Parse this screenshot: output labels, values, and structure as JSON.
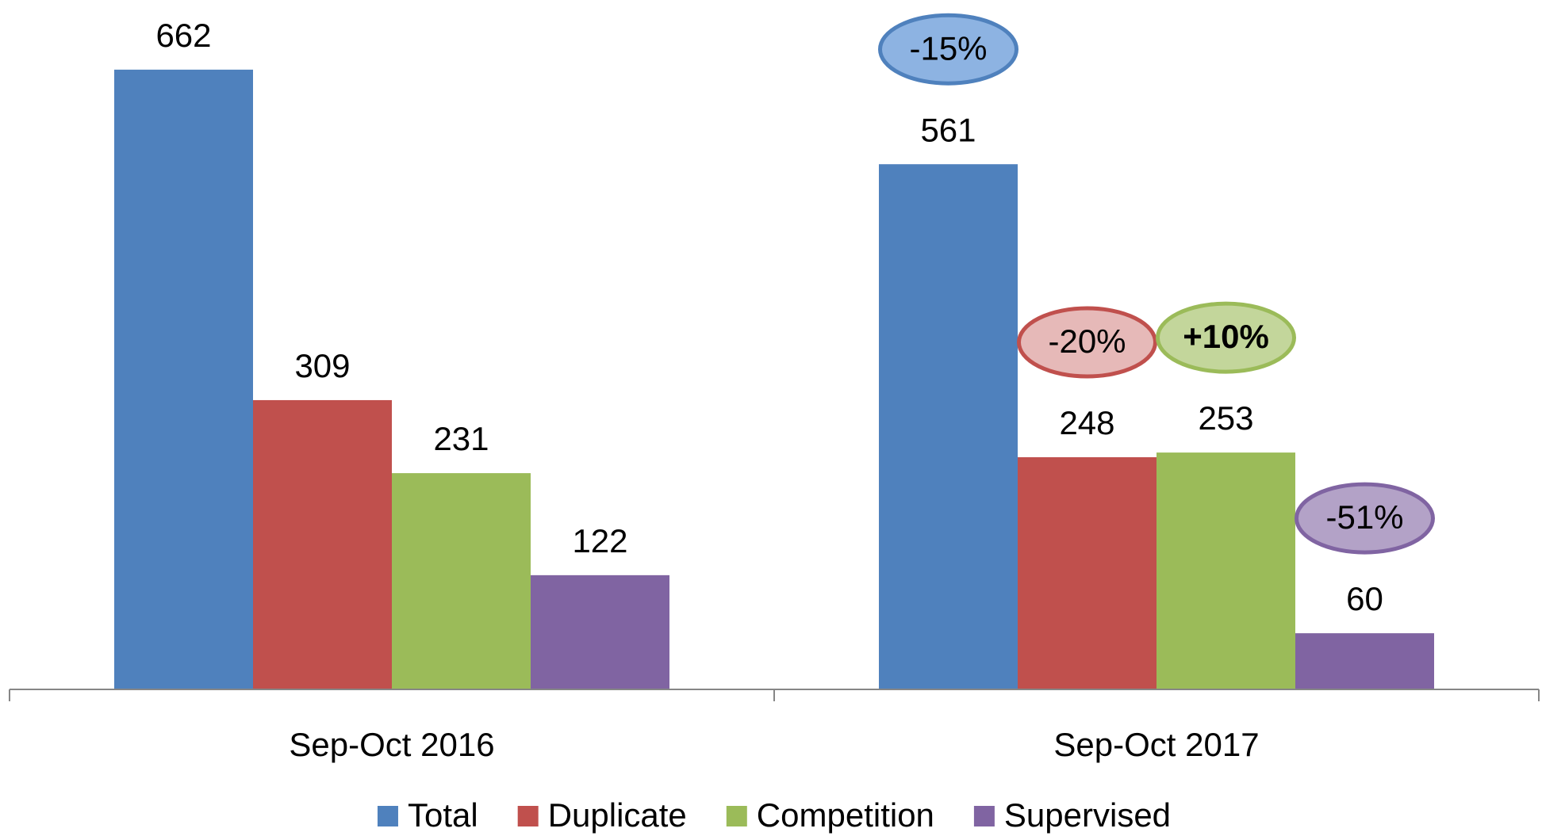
{
  "chart_data": {
    "type": "bar",
    "categories": [
      "Sep-Oct 2016",
      "Sep-Oct 2017"
    ],
    "series": [
      {
        "name": "Total",
        "color": "#4f81bd",
        "values": [
          662,
          561
        ]
      },
      {
        "name": "Duplicate",
        "color": "#c0504d",
        "values": [
          309,
          248
        ]
      },
      {
        "name": "Competition",
        "color": "#9bbb59",
        "values": [
          231,
          253
        ]
      },
      {
        "name": "Supervised",
        "color": "#8064a2",
        "values": [
          122,
          60
        ]
      }
    ],
    "ylim": [
      0,
      700
    ],
    "legend": "bottom",
    "annotations": [
      {
        "text": "-15%",
        "color": "#8db3e2",
        "bold": false
      },
      {
        "text": "-20%",
        "color": "#e6b9b8",
        "bold": false
      },
      {
        "text": "+10%",
        "color": "#c3d69b",
        "bold": true
      },
      {
        "text": "-51%",
        "color": "#b3a2c7",
        "bold": false
      }
    ]
  }
}
